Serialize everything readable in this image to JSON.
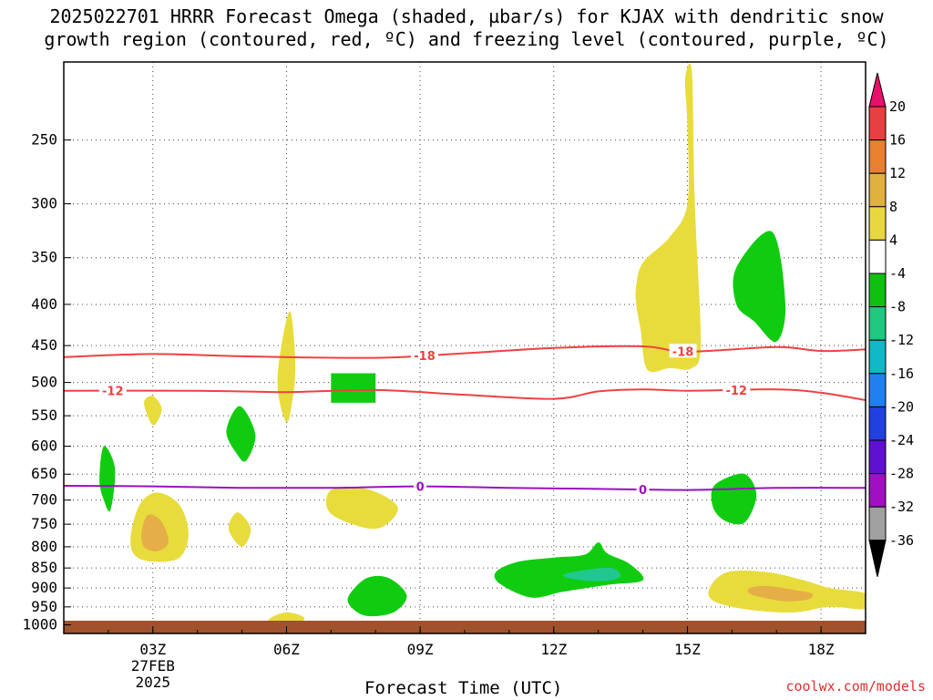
{
  "title": {
    "line1": "2025022701 HRRR Forecast Omega (shaded, µbar/s) for KJAX with dendritic snow",
    "line2": "growth region (contoured, red, ºC) and freezing level (contoured, purple, ºC)"
  },
  "watermark": "coolwx.com/models",
  "chart_data": {
    "type": "time-height",
    "xlabel": "Forecast Time (UTC)",
    "ylabel": "",
    "x_range_hours": [
      1,
      19
    ],
    "y_range_hPa": [
      1025,
      200
    ],
    "y_ticks": [
      250,
      300,
      350,
      400,
      450,
      500,
      550,
      600,
      650,
      700,
      750,
      800,
      850,
      900,
      950,
      1000
    ],
    "x_ticks": [
      {
        "hour": 3,
        "label": "03Z",
        "date": "27FEB",
        "year": "2025"
      },
      {
        "hour": 6,
        "label": "06Z"
      },
      {
        "hour": 9,
        "label": "09Z"
      },
      {
        "hour": 12,
        "label": "12Z"
      },
      {
        "hour": 15,
        "label": "15Z"
      },
      {
        "hour": 18,
        "label": "18Z"
      }
    ],
    "grid": true,
    "colorbar": {
      "labels": [
        20,
        16,
        12,
        8,
        4,
        -4,
        -8,
        -12,
        -16,
        -20,
        -24,
        -28,
        -32,
        -36
      ],
      "colors": [
        "#e8106a",
        "#e84040",
        "#e88030",
        "#e0b040",
        "#e8d840",
        "#ffffff",
        "#10c010",
        "#20c880",
        "#10b8c8",
        "#2080f0",
        "#2040e0",
        "#6010d0",
        "#a010c0",
        "#a0a0a0",
        "#000000"
      ]
    },
    "contours": [
      {
        "name": "-18",
        "color": "#f04040",
        "points": [
          [
            1,
            465
          ],
          [
            3,
            461
          ],
          [
            5,
            464
          ],
          [
            8,
            466
          ],
          [
            10,
            460
          ],
          [
            12,
            453
          ],
          [
            14,
            451
          ],
          [
            15,
            458
          ],
          [
            17,
            452
          ],
          [
            18,
            457
          ],
          [
            19,
            455
          ]
        ],
        "labels": [
          {
            "hour": 9.1,
            "text": "-18"
          },
          {
            "hour": 14.9,
            "text": "-18"
          }
        ]
      },
      {
        "name": "-12",
        "color": "#f04040",
        "points": [
          [
            1,
            512
          ],
          [
            4,
            512
          ],
          [
            6,
            514
          ],
          [
            8,
            511
          ],
          [
            10,
            518
          ],
          [
            12,
            524
          ],
          [
            13,
            513
          ],
          [
            14,
            510
          ],
          [
            15,
            512
          ],
          [
            17,
            510
          ],
          [
            18,
            515
          ],
          [
            19,
            526
          ]
        ],
        "labels": [
          {
            "hour": 2.1,
            "text": "-12"
          },
          {
            "hour": 16.1,
            "text": "-12"
          }
        ]
      },
      {
        "name": "0",
        "color": "#9a10c0",
        "points": [
          [
            1,
            672
          ],
          [
            3,
            673
          ],
          [
            5,
            676
          ],
          [
            7,
            676
          ],
          [
            9,
            673
          ],
          [
            11,
            676
          ],
          [
            13,
            678
          ],
          [
            15,
            680
          ],
          [
            17,
            676
          ],
          [
            19,
            676
          ]
        ],
        "labels": [
          {
            "hour": 9.0,
            "text": "0"
          },
          {
            "hour": 14.0,
            "text": "0"
          }
        ]
      }
    ],
    "shaded_regions": [
      {
        "level": "yellow",
        "value": 4,
        "color": "#e8dc3c",
        "points": [
          [
            14.0,
            355
          ],
          [
            14.6,
            330
          ],
          [
            15.0,
            300
          ],
          [
            15.0,
            240
          ],
          [
            14.95,
            210
          ],
          [
            15.1,
            205
          ],
          [
            15.15,
            280
          ],
          [
            15.2,
            330
          ],
          [
            15.3,
            450
          ],
          [
            15.1,
            480
          ],
          [
            14.6,
            480
          ],
          [
            14.1,
            482
          ],
          [
            13.95,
            430
          ],
          [
            13.85,
            400
          ],
          [
            13.85,
            380
          ]
        ]
      },
      {
        "level": "yellow",
        "value": 4,
        "color": "#e8dc3c",
        "points": [
          [
            5.8,
            490
          ],
          [
            5.95,
            430
          ],
          [
            6.1,
            410
          ],
          [
            6.2,
            480
          ],
          [
            6.1,
            540
          ],
          [
            6.0,
            560
          ],
          [
            5.85,
            530
          ]
        ]
      },
      {
        "level": "yellow",
        "value": 4,
        "color": "#e8dc3c",
        "points": [
          [
            2.8,
            530
          ],
          [
            3.0,
            520
          ],
          [
            3.2,
            540
          ],
          [
            3.0,
            565
          ]
        ]
      },
      {
        "level": "yellow",
        "value": 4,
        "color": "#e8dc3c",
        "points": [
          [
            2.5,
            780
          ],
          [
            2.7,
            710
          ],
          [
            3.1,
            685
          ],
          [
            3.6,
            710
          ],
          [
            3.8,
            770
          ],
          [
            3.6,
            825
          ],
          [
            3.0,
            835
          ],
          [
            2.6,
            820
          ]
        ]
      },
      {
        "level": "orange",
        "value": 8,
        "color": "#e6ae46",
        "points": [
          [
            2.75,
            765
          ],
          [
            2.9,
            730
          ],
          [
            3.2,
            745
          ],
          [
            3.35,
            790
          ],
          [
            3.1,
            810
          ],
          [
            2.8,
            800
          ]
        ]
      },
      {
        "level": "yellow",
        "value": 4,
        "color": "#e8dc3c",
        "points": [
          [
            4.7,
            760
          ],
          [
            4.9,
            725
          ],
          [
            5.2,
            760
          ],
          [
            5.0,
            800
          ]
        ]
      },
      {
        "level": "yellow",
        "value": 4,
        "color": "#e8dc3c",
        "points": [
          [
            7.0,
            680
          ],
          [
            7.8,
            678
          ],
          [
            8.5,
            715
          ],
          [
            8.0,
            760
          ],
          [
            7.0,
            728
          ]
        ]
      },
      {
        "level": "yellow",
        "value": 4,
        "color": "#e8dc3c",
        "points": [
          [
            5.6,
            985
          ],
          [
            6.0,
            965
          ],
          [
            6.4,
            980
          ],
          [
            6.2,
            1000
          ],
          [
            5.8,
            1000
          ]
        ]
      },
      {
        "level": "yellow",
        "value": 4,
        "color": "#e8dc3c",
        "points": [
          [
            15.5,
            900
          ],
          [
            15.9,
            860
          ],
          [
            16.8,
            860
          ],
          [
            17.6,
            880
          ],
          [
            18.2,
            900
          ],
          [
            19.0,
            915
          ],
          [
            19.0,
            955
          ],
          [
            18.2,
            950
          ],
          [
            17.4,
            965
          ],
          [
            16.4,
            958
          ],
          [
            15.6,
            935
          ]
        ]
      },
      {
        "level": "orange",
        "value": 8,
        "color": "#e6ae46",
        "points": [
          [
            16.4,
            900
          ],
          [
            16.8,
            895
          ],
          [
            17.4,
            905
          ],
          [
            17.8,
            915
          ],
          [
            17.7,
            930
          ],
          [
            17.2,
            935
          ],
          [
            16.7,
            925
          ],
          [
            16.4,
            915
          ]
        ]
      },
      {
        "level": "green",
        "value": -4,
        "color": "#10cc10",
        "points": [
          [
            16.1,
            360
          ],
          [
            16.9,
            325
          ],
          [
            17.2,
            400
          ],
          [
            17.0,
            445
          ],
          [
            16.5,
            420
          ],
          [
            16.1,
            400
          ]
        ]
      },
      {
        "level": "green",
        "value": -4,
        "color": "#10cc10",
        "points": [
          [
            1.8,
            660
          ],
          [
            1.9,
            600
          ],
          [
            2.15,
            640
          ],
          [
            2.05,
            720
          ],
          [
            1.9,
            700
          ]
        ]
      },
      {
        "level": "green",
        "value": -4,
        "color": "#10cc10",
        "points": [
          [
            4.65,
            575
          ],
          [
            4.95,
            535
          ],
          [
            5.3,
            580
          ],
          [
            5.1,
            625
          ],
          [
            4.9,
            615
          ]
        ]
      },
      {
        "level": "green",
        "value": -4,
        "color": "#10cc10",
        "points": [
          [
            7.0,
            487
          ],
          [
            8.0,
            487
          ],
          [
            8.0,
            530
          ],
          [
            7.0,
            530
          ]
        ]
      },
      {
        "level": "green",
        "value": -4,
        "color": "#10cc10",
        "points": [
          [
            7.4,
            920
          ],
          [
            7.8,
            875
          ],
          [
            8.3,
            875
          ],
          [
            8.7,
            920
          ],
          [
            8.4,
            965
          ],
          [
            7.8,
            975
          ],
          [
            7.45,
            950
          ]
        ]
      },
      {
        "level": "green",
        "value": -4,
        "color": "#10cc10",
        "points": [
          [
            15.55,
            680
          ],
          [
            15.8,
            660
          ],
          [
            16.3,
            650
          ],
          [
            16.55,
            690
          ],
          [
            16.3,
            745
          ],
          [
            15.9,
            745
          ],
          [
            15.6,
            720
          ]
        ]
      },
      {
        "level": "green",
        "value": -4,
        "color": "#10cc10",
        "points": [
          [
            10.7,
            860
          ],
          [
            11.2,
            835
          ],
          [
            12.0,
            825
          ],
          [
            12.7,
            818
          ],
          [
            13.0,
            790
          ],
          [
            13.2,
            815
          ],
          [
            13.7,
            840
          ],
          [
            14.0,
            880
          ],
          [
            13.2,
            892
          ],
          [
            12.2,
            910
          ],
          [
            11.5,
            925
          ],
          [
            10.8,
            890
          ]
        ]
      },
      {
        "level": "teal",
        "value": -8,
        "color": "#20c890",
        "points": [
          [
            12.2,
            868
          ],
          [
            12.7,
            855
          ],
          [
            13.3,
            850
          ],
          [
            13.5,
            870
          ],
          [
            13.2,
            882
          ],
          [
            12.6,
            880
          ]
        ]
      }
    ]
  }
}
